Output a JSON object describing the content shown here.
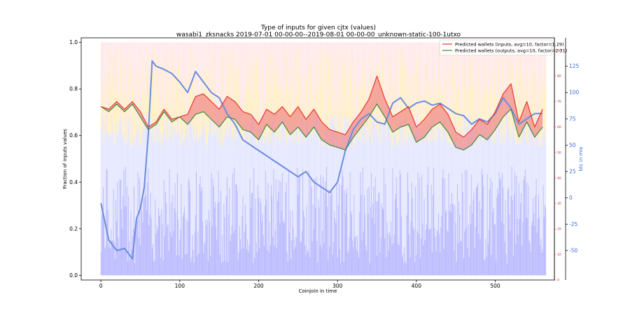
{
  "chart_data": {
    "type": "line",
    "title": "Type of inputs for given cjtx (values)",
    "subtitle": "wasabi1_zksnacks 2019-07-01 00-00-00--2019-08-01 00-00-00_unknown-static-100-1utxo",
    "xlabel": "Coinjoin in time",
    "ylabel": "Fraction of inputs values",
    "y2label": "btc in mix",
    "xlim": [
      -25,
      575
    ],
    "ylim": [
      -0.02,
      1.02
    ],
    "y_red_lim": [
      0,
      95
    ],
    "y_blue_lim": [
      -78,
      152
    ],
    "x_ticks": [
      0,
      100,
      200,
      300,
      400,
      500
    ],
    "y_ticks": [
      0.0,
      0.2,
      0.4,
      0.6,
      0.8,
      1.0
    ],
    "y_red_ticks": [
      0,
      10,
      20,
      30,
      40,
      50,
      60,
      70,
      80,
      90
    ],
    "y_blue_ticks": [
      -50,
      -25,
      0,
      25,
      50,
      75,
      100,
      125
    ],
    "colors": {
      "inputs_line": "#e8392b",
      "outputs_line": "#3c8c3c",
      "fill_between": "#f08080",
      "btc_line": "#6a8cdf",
      "bars_background": "#ffc0c0",
      "bars_mid": "#ffe8a8",
      "bars_low": "#dde0ff",
      "bars_blue": "#8080ff"
    },
    "legend": {
      "placement": "top-right",
      "entries": [
        {
          "label": "Predicted wallets (inputs, avg=10, factor=1.29)",
          "color": "#e8392b"
        },
        {
          "label": "Predicted wallets (outputs, avg=10, factor=2.31)",
          "color": "#3c8c3c"
        }
      ]
    },
    "series": [
      {
        "name": "Predicted wallets (inputs, avg=10, factor=1.29)",
        "axis": "red",
        "x": [
          0,
          10,
          20,
          30,
          40,
          50,
          60,
          70,
          80,
          90,
          100,
          110,
          120,
          130,
          140,
          150,
          160,
          170,
          180,
          190,
          200,
          210,
          220,
          230,
          240,
          250,
          260,
          270,
          280,
          290,
          300,
          310,
          320,
          330,
          340,
          350,
          360,
          370,
          380,
          390,
          400,
          410,
          420,
          430,
          440,
          450,
          460,
          470,
          480,
          490,
          500,
          510,
          520,
          530,
          540,
          550,
          560
        ],
        "values": [
          68,
          67,
          70,
          67,
          70,
          66,
          60,
          62,
          67,
          63,
          64,
          65,
          72,
          73,
          70,
          67,
          72,
          70,
          66,
          65,
          61,
          67,
          65,
          68,
          64,
          68,
          63,
          67,
          62,
          59,
          58,
          57,
          62,
          66,
          71,
          80,
          71,
          64,
          66,
          68,
          60,
          63,
          67,
          69,
          65,
          58,
          56,
          59,
          63,
          61,
          66,
          73,
          77,
          62,
          70,
          60,
          67
        ]
      },
      {
        "name": "Predicted wallets (outputs, avg=10, factor=2.31)",
        "axis": "red",
        "x": [
          0,
          10,
          20,
          30,
          40,
          50,
          60,
          70,
          80,
          90,
          100,
          110,
          120,
          130,
          140,
          150,
          160,
          170,
          180,
          190,
          200,
          210,
          220,
          230,
          240,
          250,
          260,
          270,
          280,
          290,
          300,
          310,
          320,
          330,
          340,
          350,
          360,
          370,
          380,
          390,
          400,
          410,
          420,
          430,
          440,
          450,
          460,
          470,
          480,
          490,
          500,
          510,
          520,
          530,
          540,
          550,
          560
        ],
        "values": [
          68,
          66,
          69,
          66,
          69,
          64,
          59,
          61,
          66,
          62,
          64,
          61,
          65,
          66,
          63,
          60,
          64,
          63,
          59,
          58,
          55,
          61,
          58,
          62,
          57,
          60,
          56,
          60,
          55,
          53,
          52,
          51,
          56,
          60,
          64,
          69,
          64,
          58,
          60,
          61,
          54,
          56,
          60,
          62,
          58,
          52,
          51,
          53,
          57,
          55,
          59,
          64,
          67,
          56,
          62,
          56,
          60
        ]
      },
      {
        "name": "",
        "axis": "blue",
        "x": [
          0,
          10,
          20,
          30,
          40,
          45,
          50,
          55,
          60,
          65,
          70,
          80,
          90,
          100,
          110,
          120,
          130,
          140,
          150,
          160,
          170,
          180,
          190,
          200,
          210,
          220,
          230,
          240,
          250,
          260,
          270,
          280,
          290,
          300,
          310,
          320,
          330,
          340,
          350,
          360,
          370,
          380,
          390,
          400,
          410,
          420,
          430,
          440,
          450,
          460,
          470,
          480,
          490,
          500,
          510,
          520,
          530,
          540,
          550,
          560
        ],
        "values": [
          -5,
          -40,
          -50,
          -48,
          -58,
          -20,
          -10,
          10,
          60,
          130,
          125,
          122,
          118,
          110,
          100,
          120,
          110,
          100,
          95,
          80,
          70,
          55,
          50,
          45,
          40,
          35,
          30,
          25,
          20,
          25,
          15,
          10,
          5,
          15,
          45,
          65,
          75,
          80,
          72,
          70,
          90,
          95,
          85,
          90,
          92,
          88,
          90,
          85,
          80,
          78,
          70,
          75,
          72,
          80,
          95,
          85,
          70,
          75,
          80,
          80
        ]
      }
    ]
  }
}
